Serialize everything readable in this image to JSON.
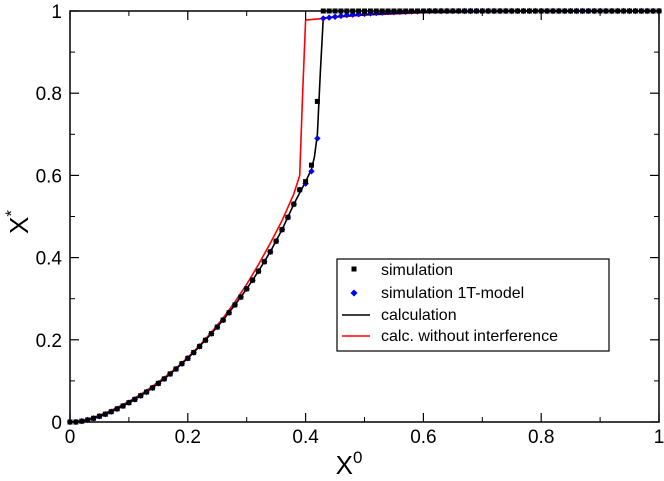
{
  "chart_data": {
    "type": "line",
    "title": "",
    "xlabel": "X",
    "xlabel_sup": "0",
    "ylabel": "X",
    "ylabel_sup": "*",
    "xlim": [
      0,
      1
    ],
    "ylim": [
      0,
      1
    ],
    "xticks": [
      "0",
      "0.2",
      "0.4",
      "0.6",
      "0.8",
      "1"
    ],
    "yticks": [
      "0",
      "0.2",
      "0.4",
      "0.6",
      "0.8",
      "1"
    ],
    "grid": false,
    "legend_position": "center-right",
    "series": [
      {
        "name": "simulation",
        "kind": "markers",
        "marker": "square",
        "color": "#000000",
        "x": [
          0.0,
          0.01,
          0.02,
          0.03,
          0.04,
          0.05,
          0.06,
          0.07,
          0.08,
          0.09,
          0.1,
          0.11,
          0.12,
          0.13,
          0.14,
          0.15,
          0.16,
          0.17,
          0.18,
          0.19,
          0.2,
          0.21,
          0.22,
          0.23,
          0.24,
          0.25,
          0.26,
          0.27,
          0.28,
          0.29,
          0.3,
          0.31,
          0.32,
          0.33,
          0.34,
          0.35,
          0.36,
          0.37,
          0.38,
          0.39,
          0.4,
          0.41,
          0.42,
          0.43,
          0.44,
          0.45,
          0.46,
          0.47,
          0.48,
          0.49,
          0.5,
          0.51,
          0.52,
          0.53,
          0.54,
          0.55,
          0.56,
          0.57,
          0.58,
          0.59,
          0.6,
          0.61,
          0.62,
          0.63,
          0.64,
          0.65,
          0.66,
          0.67,
          0.68,
          0.69,
          0.7,
          0.71,
          0.72,
          0.73,
          0.74,
          0.75,
          0.76,
          0.77,
          0.78,
          0.79,
          0.8,
          0.81,
          0.82,
          0.83,
          0.84,
          0.85,
          0.86,
          0.87,
          0.88,
          0.89,
          0.9,
          0.91,
          0.92,
          0.93,
          0.94,
          0.95,
          0.96,
          0.97,
          0.98,
          0.99,
          1.0
        ],
        "y": [
          0.0,
          0.0,
          0.002,
          0.005,
          0.009,
          0.014,
          0.019,
          0.025,
          0.032,
          0.039,
          0.047,
          0.055,
          0.064,
          0.073,
          0.083,
          0.094,
          0.105,
          0.117,
          0.129,
          0.142,
          0.155,
          0.169,
          0.184,
          0.199,
          0.215,
          0.231,
          0.248,
          0.266,
          0.285,
          0.304,
          0.324,
          0.345,
          0.367,
          0.39,
          0.414,
          0.44,
          0.468,
          0.498,
          0.53,
          0.565,
          0.585,
          0.625,
          0.78,
          1.0,
          1.0,
          1.0,
          1.0,
          1.0,
          1.0,
          1.0,
          1.0,
          1.0,
          1.0,
          1.0,
          1.0,
          1.0,
          1.0,
          1.0,
          1.0,
          1.0,
          1.0,
          1.0,
          1.0,
          1.0,
          1.0,
          1.0,
          1.0,
          1.0,
          1.0,
          1.0,
          1.0,
          1.0,
          1.0,
          1.0,
          1.0,
          1.0,
          1.0,
          1.0,
          1.0,
          1.0,
          1.0,
          1.0,
          1.0,
          1.0,
          1.0,
          1.0,
          1.0,
          1.0,
          1.0,
          1.0,
          1.0,
          1.0,
          1.0,
          1.0,
          1.0,
          1.0,
          1.0,
          1.0,
          1.0,
          1.0,
          1.0
        ]
      },
      {
        "name": "simulation 1T-model",
        "kind": "markers",
        "marker": "diamond",
        "color": "#0000ff",
        "x": [
          0.0,
          0.01,
          0.02,
          0.03,
          0.04,
          0.05,
          0.06,
          0.07,
          0.08,
          0.09,
          0.1,
          0.11,
          0.12,
          0.13,
          0.14,
          0.15,
          0.16,
          0.17,
          0.18,
          0.19,
          0.2,
          0.21,
          0.22,
          0.23,
          0.24,
          0.25,
          0.26,
          0.27,
          0.28,
          0.29,
          0.3,
          0.31,
          0.32,
          0.33,
          0.34,
          0.35,
          0.36,
          0.37,
          0.38,
          0.39,
          0.4,
          0.41,
          0.42,
          0.43,
          0.44,
          0.45,
          0.46,
          0.47,
          0.48,
          0.49,
          0.5,
          0.51,
          0.52,
          0.53,
          0.54,
          0.55,
          0.56,
          0.57,
          0.58,
          0.59,
          0.6,
          0.61,
          0.62,
          0.63,
          0.64,
          0.65,
          0.66,
          0.67,
          0.68,
          0.69,
          0.7,
          0.71,
          0.72,
          0.73,
          0.74,
          0.75,
          0.76,
          0.77,
          0.78,
          0.79,
          0.8,
          0.81,
          0.82,
          0.83,
          0.84,
          0.85,
          0.86,
          0.87,
          0.88,
          0.89,
          0.9,
          0.91,
          0.92,
          0.93,
          0.94,
          0.95,
          0.96,
          0.97,
          0.98,
          0.99,
          1.0
        ],
        "y": [
          0.0,
          0.0,
          0.002,
          0.005,
          0.009,
          0.014,
          0.019,
          0.025,
          0.032,
          0.039,
          0.047,
          0.055,
          0.064,
          0.073,
          0.083,
          0.094,
          0.105,
          0.117,
          0.129,
          0.142,
          0.155,
          0.169,
          0.184,
          0.199,
          0.215,
          0.231,
          0.248,
          0.266,
          0.285,
          0.304,
          0.324,
          0.345,
          0.367,
          0.39,
          0.414,
          0.44,
          0.468,
          0.498,
          0.53,
          0.565,
          0.58,
          0.61,
          0.69,
          0.982,
          0.984,
          0.986,
          0.988,
          0.99,
          0.991,
          0.992,
          0.993,
          0.994,
          0.995,
          0.996,
          0.997,
          0.997,
          0.998,
          0.998,
          0.999,
          0.999,
          0.999,
          1.0,
          1.0,
          1.0,
          1.0,
          1.0,
          1.0,
          1.0,
          1.0,
          1.0,
          1.0,
          1.0,
          1.0,
          1.0,
          1.0,
          1.0,
          1.0,
          1.0,
          1.0,
          1.0,
          1.0,
          1.0,
          1.0,
          1.0,
          1.0,
          1.0,
          1.0,
          1.0,
          1.0,
          1.0,
          1.0,
          1.0,
          1.0,
          1.0,
          1.0,
          1.0,
          1.0,
          1.0,
          1.0,
          1.0,
          1.0
        ]
      },
      {
        "name": "calculation",
        "kind": "line",
        "color": "#000000",
        "x": [
          0.0,
          0.02,
          0.04,
          0.06,
          0.08,
          0.1,
          0.12,
          0.14,
          0.16,
          0.18,
          0.2,
          0.22,
          0.24,
          0.26,
          0.28,
          0.3,
          0.32,
          0.34,
          0.36,
          0.38,
          0.4,
          0.41,
          0.415,
          0.42,
          0.425,
          0.43,
          0.45,
          0.5,
          0.6,
          0.7,
          0.8,
          0.9,
          1.0
        ],
        "y": [
          0.0,
          0.002,
          0.009,
          0.019,
          0.032,
          0.047,
          0.064,
          0.083,
          0.105,
          0.129,
          0.155,
          0.184,
          0.215,
          0.248,
          0.285,
          0.324,
          0.367,
          0.414,
          0.468,
          0.53,
          0.585,
          0.615,
          0.645,
          0.7,
          0.85,
          0.983,
          0.986,
          0.991,
          0.997,
          0.999,
          1.0,
          1.0,
          1.0
        ]
      },
      {
        "name": "calc. without interference",
        "kind": "line",
        "color": "#ff0000",
        "x": [
          0.0,
          0.02,
          0.04,
          0.06,
          0.08,
          0.1,
          0.12,
          0.14,
          0.16,
          0.18,
          0.2,
          0.22,
          0.24,
          0.26,
          0.28,
          0.3,
          0.32,
          0.34,
          0.36,
          0.38,
          0.39,
          0.395,
          0.4,
          0.43,
          0.45,
          0.5,
          0.6,
          0.7,
          0.8,
          0.9,
          1.0
        ],
        "y": [
          0.0,
          0.003,
          0.011,
          0.022,
          0.035,
          0.05,
          0.067,
          0.087,
          0.108,
          0.131,
          0.157,
          0.186,
          0.218,
          0.253,
          0.292,
          0.335,
          0.383,
          0.435,
          0.49,
          0.555,
          0.6,
          0.8,
          0.978,
          0.982,
          0.985,
          0.99,
          0.996,
          0.999,
          1.0,
          1.0,
          1.0
        ]
      }
    ]
  }
}
